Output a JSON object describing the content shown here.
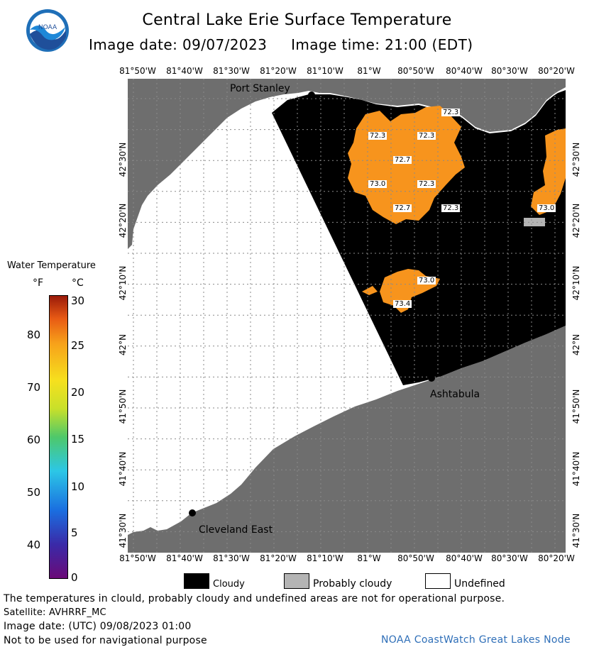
{
  "header": {
    "title": "Central Lake Erie Surface Temperature",
    "image_date_label": "Image date: 09/07/2023",
    "image_time_label": "Image time: 21:00 (EDT)",
    "logo_text": "NOAA"
  },
  "axes": {
    "longitude_ticks": [
      "81°50'W",
      "81°40'W",
      "81°30'W",
      "81°20'W",
      "81°10'W",
      "81°W",
      "80°50'W",
      "80°40'W",
      "80°30'W",
      "80°20'W"
    ],
    "latitude_ticks": [
      "42°30'N",
      "42°20'N",
      "42°10'N",
      "42°N",
      "41°50'N",
      "41°40'N",
      "41°30'N"
    ]
  },
  "places": [
    {
      "name": "Port Stanley"
    },
    {
      "name": "Ashtabula"
    },
    {
      "name": "Cleveland East"
    }
  ],
  "temperature_labels": [
    "72.3",
    "72.3",
    "72.3",
    "72.7",
    "73.0",
    "72.3",
    "72.7",
    "72.3",
    "73.0",
    "73.0",
    "73.4"
  ],
  "legend": {
    "title": "Water Temperature",
    "unit_f": "°F",
    "unit_c": "°C",
    "fahrenheit_ticks": [
      "80",
      "70",
      "60",
      "50",
      "40"
    ],
    "celsius_ticks": [
      "30",
      "25",
      "20",
      "15",
      "10",
      "5",
      "0"
    ]
  },
  "key": [
    {
      "label": "Cloudy",
      "color": "#000000"
    },
    {
      "label": "Probably cloudy",
      "color": "#b4b4b4"
    },
    {
      "label": "Undefined",
      "color": "#ffffff"
    }
  ],
  "footer": {
    "note": "The temperatures in clould, probably cloudy and undefined areas are not for operational purpose.",
    "satellite": "Satellite: AVHRRF_MC",
    "utc_date": "Image date: (UTC) 09/08/2023  01:00",
    "navigation": "Not to be used for navigational purpose",
    "credit": "NOAA CoastWatch Great Lakes Node"
  },
  "colors": {
    "land": "#6e6e6e",
    "cloud": "#000000",
    "undefined": "#ffffff",
    "sst_orange": "#f7941d",
    "probably_cloudy": "#b4b4b4"
  }
}
